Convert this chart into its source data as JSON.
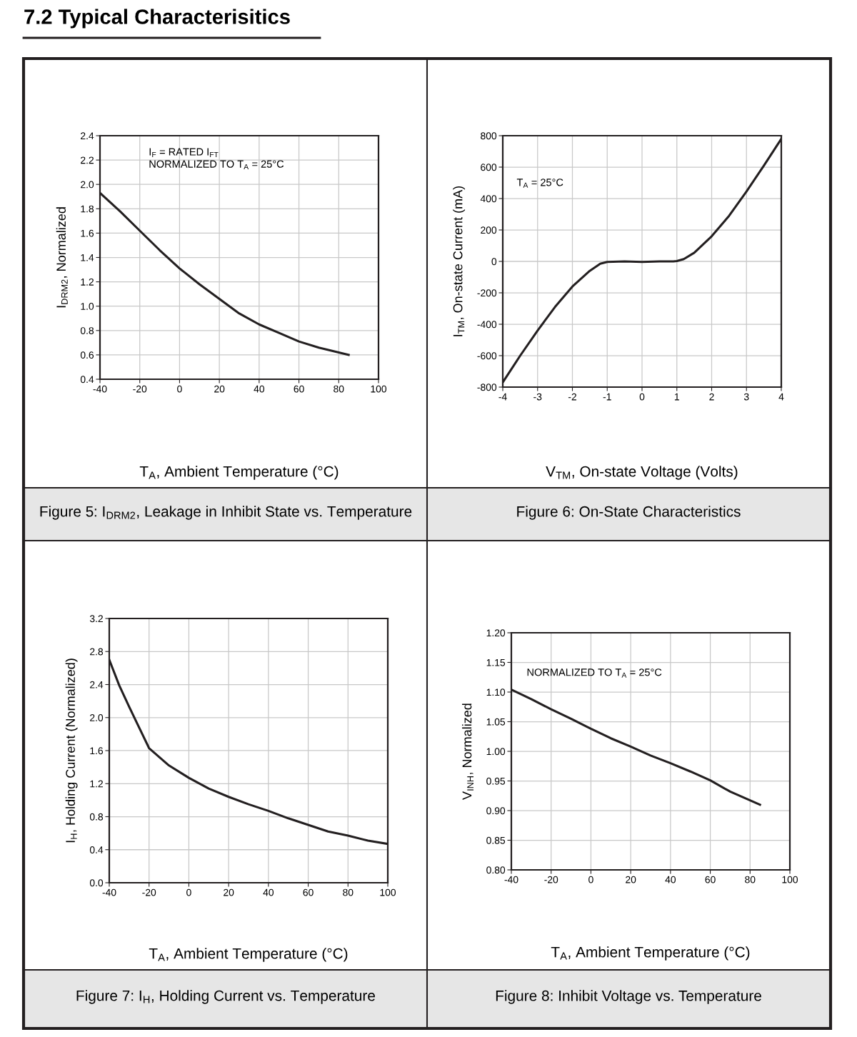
{
  "chart_data": [
    {
      "type": "line",
      "title": "7.2 Typical Characterisitics",
      "xlabel": "T$_{A}$, Ambient Temperature (°C)",
      "ylabel": "I$_{DRM2}$, Normalized",
      "annotations": [
        "Figure 5: I$_{DRM2}$, Leakage in Inhibit State vs. Temperature",
        "I$_{F}$ = RATED I$_{FT}$",
        "NORMALIZED TO T$_{A}$ = 25°C"
      ],
      "x": [
        -40,
        -30,
        -20,
        -10,
        0,
        10,
        20,
        30,
        40,
        50,
        60,
        70,
        80,
        85
      ],
      "series": [
        {
          "color": "#231f20",
          "values": [
            1.93,
            1.78,
            1.62,
            1.46,
            1.31,
            1.18,
            1.06,
            0.94,
            0.85,
            0.78,
            0.71,
            0.66,
            0.62,
            0.6
          ]
        }
      ],
      "xlim": [
        -40,
        100
      ],
      "xticks": [
        -40,
        -20,
        0,
        20,
        40,
        60,
        80,
        100
      ],
      "ylim": [
        0.4,
        2.4
      ],
      "yticks": [
        0.4,
        0.6,
        0.8,
        {
          "value": 1,
          "label": "1.0"
        },
        1.2,
        1.4,
        1.6,
        1.8,
        {
          "value": 2,
          "label": "2.0"
        },
        2.2,
        2.4
      ],
      "grid": true
    },
    {
      "type": "line",
      "xlabel": "V$_{TM}$, On-state Voltage (Volts)",
      "ylabel": "I$_{TM}$, On-state Current (mA)",
      "annotations": [
        "Figure 6: On-State Characteristics",
        "T$_{A}$ = 25°C"
      ],
      "x": [
        -4,
        -3.5,
        -3,
        -2.5,
        -2,
        -1.5,
        -1.2,
        -1,
        -0.5,
        0,
        0.5,
        0.9,
        1,
        1.2,
        1.5,
        2,
        2.5,
        3,
        3.5,
        4
      ],
      "series": [
        {
          "color": "#231f20",
          "values": [
            -770,
            -600,
            -440,
            -290,
            -160,
            -60,
            -15,
            -3,
            0,
            -3,
            0,
            0,
            2,
            15,
            55,
            160,
            290,
            445,
            610,
            780
          ]
        }
      ],
      "xlim": [
        -4,
        4
      ],
      "xticks": [
        -4,
        -3,
        -2,
        -1,
        0,
        1,
        2,
        3,
        4
      ],
      "ylim": [
        -800,
        800
      ],
      "yticks": [
        -800,
        -600,
        -400,
        -200,
        0,
        200,
        400,
        600,
        800
      ],
      "grid": true
    },
    {
      "type": "line",
      "xlabel": "T$_{A}$, Ambient Temperature (°C)",
      "ylabel": "I$_{H}$, Holding Current (Normalized)",
      "annotations": [
        "Figure 7: I$_{H}$, Holding Current vs. Temperature"
      ],
      "x": [
        -40,
        -35,
        -30,
        -25,
        -20,
        -10,
        0,
        10,
        20,
        30,
        40,
        50,
        60,
        70,
        80,
        90,
        100
      ],
      "series": [
        {
          "color": "#231f20",
          "values": [
            2.7,
            2.39,
            2.13,
            1.88,
            1.63,
            1.42,
            1.27,
            1.14,
            1.04,
            0.95,
            0.87,
            0.78,
            0.7,
            0.62,
            0.57,
            0.51,
            0.47
          ]
        }
      ],
      "xlim": [
        -40,
        100
      ],
      "xticks": [
        -40,
        -20,
        0,
        20,
        40,
        60,
        80,
        100
      ],
      "ylim": [
        0,
        3.2
      ],
      "yticks": [
        {
          "value": 0,
          "label": "0.0"
        },
        0.4,
        0.8,
        1.2,
        1.6,
        {
          "value": 2,
          "label": "2.0"
        },
        2.4,
        2.8,
        3.2
      ],
      "grid": true
    },
    {
      "type": "line",
      "xlabel": "T$_{A}$, Ambient Temperature (°C)",
      "ylabel": "V$_{INH}$, Normalized",
      "annotations": [
        "Figure 8: Inhibit Voltage vs. Temperature",
        "NORMALIZED TO T$_{A}$ = 25°C"
      ],
      "x": [
        -40,
        -30,
        -20,
        -10,
        0,
        10,
        20,
        30,
        40,
        50,
        60,
        70,
        85
      ],
      "series": [
        {
          "color": "#231f20",
          "values": [
            1.104,
            1.088,
            1.071,
            1.055,
            1.038,
            1.022,
            1.008,
            0.993,
            0.98,
            0.966,
            0.951,
            0.932,
            0.91
          ]
        }
      ],
      "xlim": [
        -40,
        100
      ],
      "xticks": [
        -40,
        -20,
        0,
        20,
        40,
        60,
        80,
        100
      ],
      "ylim": [
        0.8,
        1.2
      ],
      "yticks": [
        {
          "value": 0.8,
          "label": "0.80"
        },
        0.85,
        {
          "value": 0.9,
          "label": "0.90"
        },
        0.95,
        {
          "value": 1.0,
          "label": "1.00"
        },
        1.05,
        {
          "value": 1.1,
          "label": "1.10"
        },
        1.15,
        {
          "value": 1.2,
          "label": "1.20"
        }
      ],
      "grid": true
    }
  ]
}
